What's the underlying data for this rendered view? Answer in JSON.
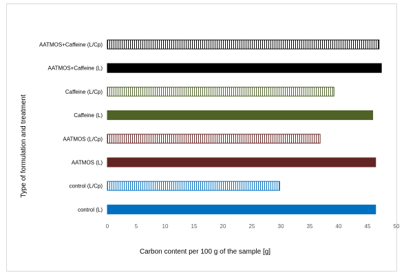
{
  "chart_data": {
    "type": "bar",
    "orientation": "horizontal",
    "categories": [
      "AATMOS+Caffeine (L/Cp)",
      "AATMOS+Caffeine (L)",
      "Caffeine (L/Cp)",
      "Caffeine (L)",
      "AATMOS (L/Cp)",
      "AATMOS (L)",
      "control (L/Cp)",
      "control (L)"
    ],
    "values": [
      47.0,
      47.4,
      39.2,
      45.9,
      36.8,
      46.4,
      29.8,
      46.4
    ],
    "bar_styles": [
      {
        "color": "#000000",
        "pattern": "vertical-stripes"
      },
      {
        "color": "#000000",
        "pattern": "solid"
      },
      {
        "color": "#4f6228",
        "pattern": "vertical-stripes"
      },
      {
        "color": "#4f6228",
        "pattern": "solid"
      },
      {
        "color": "#632523",
        "pattern": "vertical-stripes"
      },
      {
        "color": "#632523",
        "pattern": "solid"
      },
      {
        "color": "#0070c0",
        "pattern": "vertical-stripes"
      },
      {
        "color": "#0070c0",
        "pattern": "solid"
      }
    ],
    "xticks": [
      "0",
      "5",
      "10",
      "15",
      "20",
      "25",
      "30",
      "35",
      "40",
      "45",
      "50"
    ],
    "xlim": [
      0,
      50
    ],
    "xlabel": "Carbon content per 100 g of the sample [g]",
    "ylabel": "Type of formulation and treatment",
    "title": "",
    "grid": false,
    "legend": "none"
  }
}
